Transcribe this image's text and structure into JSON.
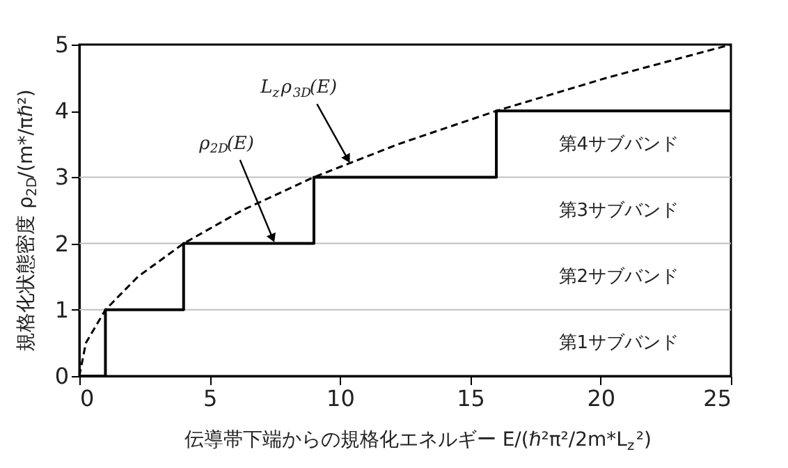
{
  "chart_data": {
    "type": "step",
    "xlabel": "伝導帯下端からの規格化エネルギー  E/(ℏ²π²/2m*L$_{z}$²)",
    "ylabel": "規格化状態密度  ρ$_{2D}$/(m*/πℏ²)",
    "series": [
      {
        "type": "step",
        "color": "#000000",
        "line_style": "solid",
        "x": [
          0,
          1,
          4,
          9,
          16,
          25
        ],
        "values": [
          0,
          1,
          2,
          3,
          4,
          4
        ]
      },
      {
        "type": "line",
        "color": "#000000",
        "line_style": "dashed",
        "x": [
          0,
          0.25,
          1,
          2.25,
          4,
          6.25,
          9,
          12.25,
          16,
          20.25,
          25
        ],
        "values": [
          0,
          0.5,
          1,
          1.5,
          2,
          2.5,
          3,
          3.5,
          4,
          4.5,
          5
        ]
      }
    ],
    "xlim": [
      0,
      25
    ],
    "ylim": [
      0,
      5
    ],
    "xticks": [
      0,
      5,
      10,
      15,
      20,
      25
    ],
    "yticks": [
      0,
      1,
      2,
      3,
      4,
      5
    ],
    "ref_lines": [
      {
        "axis": "y",
        "value": 1,
        "color": "#c0c0c0"
      },
      {
        "axis": "y",
        "value": 2,
        "color": "#c0c0c0"
      },
      {
        "axis": "y",
        "value": 3,
        "color": "#c0c0c0"
      }
    ],
    "annotations": [
      {
        "text": "ρ$_{2D}$(E)",
        "x": 7.5,
        "y": 2
      },
      {
        "text": "L$_{z}$ρ$_{3D}$(E)",
        "x": 10.4,
        "y": 3.2
      },
      "第1サブバンド",
      "第2サブバンド",
      "第3サブバンド",
      "第4サブバンド"
    ],
    "grid": false
  }
}
